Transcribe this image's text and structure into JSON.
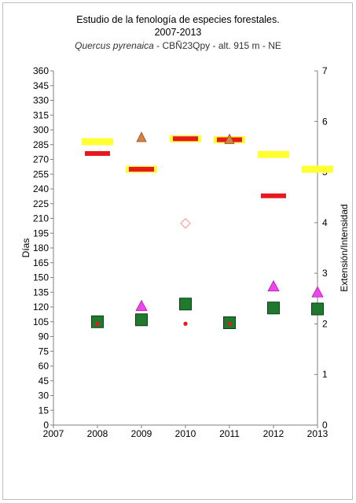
{
  "chart_data": {
    "type": "scatter",
    "title": "Estudio de la fenología de especies forestales.",
    "subtitle_years": "2007-2013",
    "subtitle_species": "Quercus pyrenaica",
    "subtitle_rest": " - CBÑ23Qpy - alt. 915 m - NE",
    "ylabel": "Días",
    "y2label": "Extensión/Intensidad",
    "xlim": [
      2007,
      2013
    ],
    "ylim": [
      0,
      360
    ],
    "y2lim": [
      0,
      7
    ],
    "x_ticks": [
      "2007",
      "2008",
      "2009",
      "2010",
      "2011",
      "2012",
      "2013"
    ],
    "y_ticks": [
      "0",
      "15",
      "30",
      "45",
      "60",
      "75",
      "90",
      "105",
      "120",
      "135",
      "150",
      "165",
      "180",
      "195",
      "210",
      "225",
      "240",
      "255",
      "270",
      "285",
      "300",
      "315",
      "330",
      "345",
      "360"
    ],
    "y2_ticks": [
      "0",
      "1",
      "2",
      "3",
      "4",
      "5",
      "6",
      "7"
    ],
    "colors": {
      "yellow_bar": "#ffff33",
      "red_bar": "#e8191e",
      "magenta_triangle": "#ee44ee",
      "orange_triangle": "#d9803f",
      "green_square": "#1f7a2e",
      "red_dot": "#e8191e",
      "diamond": "#f2a0a0"
    },
    "series": [
      {
        "marker": "yellow-bar",
        "points": [
          [
            2008,
            288
          ],
          [
            2009,
            260
          ],
          [
            2010,
            291
          ],
          [
            2011,
            290
          ],
          [
            2012,
            275
          ],
          [
            2013,
            260
          ]
        ]
      },
      {
        "marker": "red-bar",
        "points": [
          [
            2008,
            276
          ],
          [
            2009,
            260
          ],
          [
            2010,
            291
          ],
          [
            2011,
            290
          ],
          [
            2012,
            233
          ]
        ]
      },
      {
        "marker": "magenta-triangle",
        "points": [
          [
            2009,
            121
          ],
          [
            2010,
            122
          ],
          [
            2012,
            141
          ],
          [
            2013,
            135
          ]
        ]
      },
      {
        "marker": "orange-triangle",
        "points": [
          [
            2009,
            292
          ],
          [
            2011,
            290
          ]
        ]
      },
      {
        "marker": "green-square",
        "points": [
          [
            2008,
            105
          ],
          [
            2009,
            107
          ],
          [
            2010,
            123
          ],
          [
            2011,
            104
          ],
          [
            2012,
            119
          ],
          [
            2013,
            118
          ]
        ]
      },
      {
        "marker": "red-dot",
        "points": [
          [
            2008,
            103
          ],
          [
            2010,
            103
          ],
          [
            2011,
            103
          ]
        ]
      },
      {
        "marker": "diamond",
        "points": [
          [
            2010,
            205
          ]
        ]
      }
    ]
  }
}
